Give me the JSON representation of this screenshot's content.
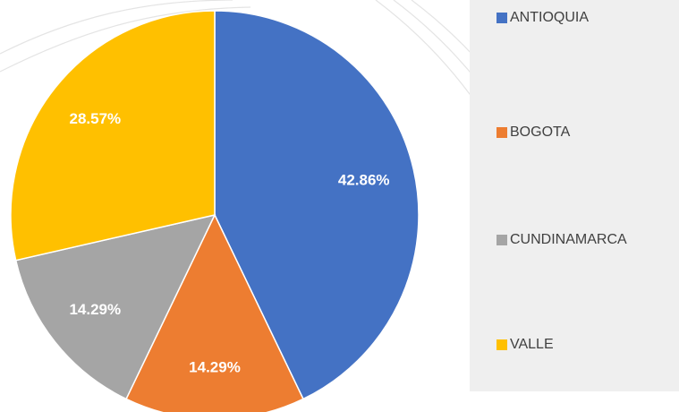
{
  "chart_data": {
    "type": "pie",
    "categories": [
      "ANTIOQUIA",
      "BOGOTA",
      "CUNDINAMARCA",
      "VALLE"
    ],
    "values": [
      42.86,
      14.29,
      14.29,
      28.57
    ],
    "value_labels": [
      "42.86%",
      "14.29%",
      "14.29%",
      "28.57%"
    ],
    "colors": [
      "#4472c4",
      "#ed7d31",
      "#a5a5a5",
      "#ffc000"
    ],
    "legend": "right"
  }
}
